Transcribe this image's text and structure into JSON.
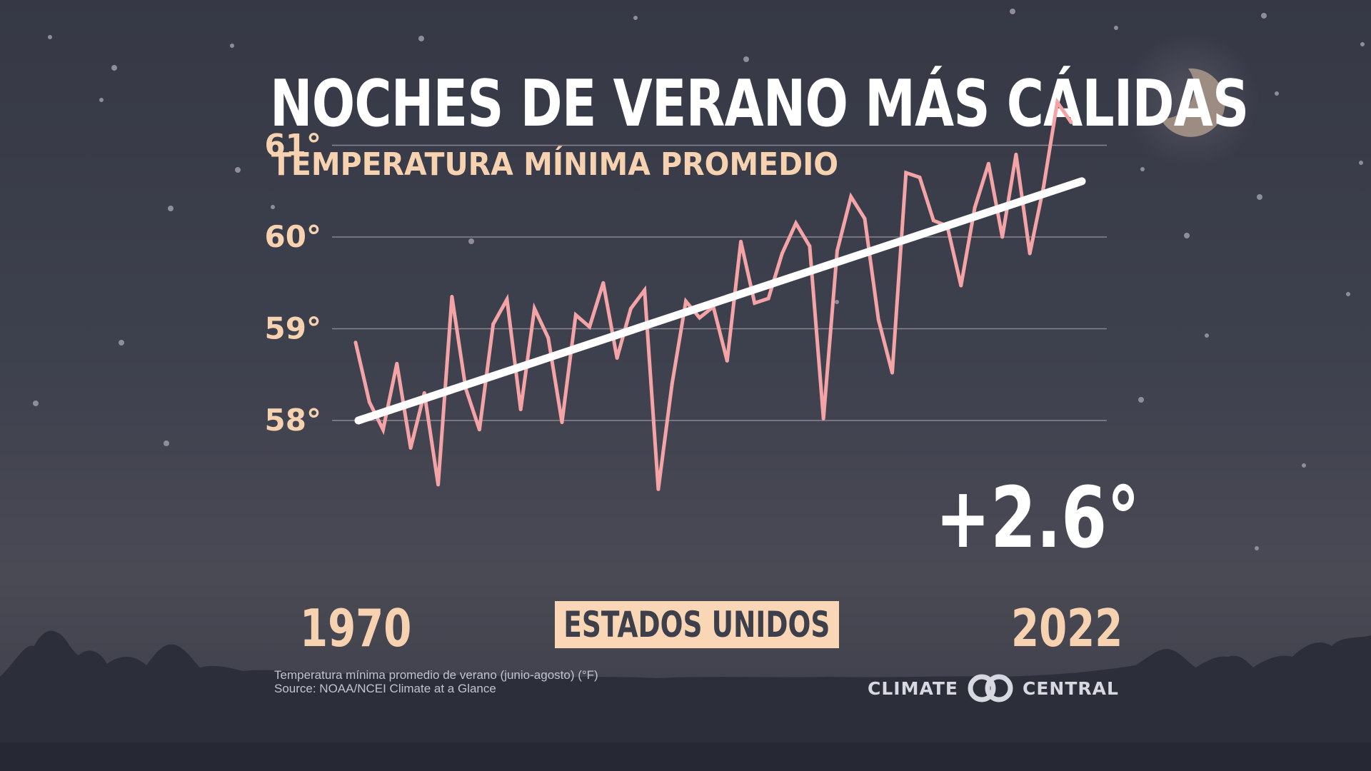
{
  "title": "NOCHES DE VERANO MÁS CÁLIDAS",
  "subtitle": "TEMPERATURA MÍNIMA PROMEDIO",
  "region": "ESTADOS UNIDOS",
  "change_label": "+2.6°",
  "footnote": {
    "line1": "Temperatura mínima promedio de verano (junio-agosto) (°F)",
    "line2": "Source: NOAA/NCEI Climate at a Glance"
  },
  "brand": {
    "left": "CLIMATE",
    "right": "CENTRAL"
  },
  "colors": {
    "series_line": "#f4a3a6",
    "trend_line": "#ffffff",
    "accent": "#f7d2b0",
    "background": "#3c3f4c"
  },
  "chart_data": {
    "type": "line",
    "title": "NOCHES DE VERANO MÁS CÁLIDAS",
    "subtitle": "TEMPERATURA MÍNIMA PROMEDIO",
    "xlabel": "",
    "ylabel": "",
    "x_range": [
      1970,
      2022
    ],
    "x_tick_labels": [
      "1970",
      "2022"
    ],
    "ylim": [
      57.2,
      61.5
    ],
    "y_ticks": [
      58,
      59,
      60,
      61
    ],
    "y_tick_labels": [
      "58°",
      "59°",
      "60°",
      "61°"
    ],
    "grid": true,
    "annotation": "+2.6°",
    "series": [
      {
        "x": [
          1970,
          1971,
          1972,
          1973,
          1974,
          1975,
          1976,
          1977,
          1978,
          1979,
          1980,
          1981,
          1982,
          1983,
          1984,
          1985,
          1986,
          1987,
          1988,
          1989,
          1990,
          1991,
          1992,
          1993,
          1994,
          1995,
          1996,
          1997,
          1998,
          1999,
          2000,
          2001,
          2002,
          2003,
          2004,
          2005,
          2006,
          2007,
          2008,
          2009,
          2010,
          2011,
          2012,
          2013,
          2014,
          2015,
          2016,
          2017,
          2018,
          2019,
          2020,
          2021,
          2022
        ],
        "values": [
          58.85,
          58.2,
          57.9,
          58.62,
          57.7,
          58.3,
          57.3,
          59.35,
          58.35,
          57.9,
          59.05,
          59.32,
          58.12,
          59.22,
          58.9,
          57.98,
          59.15,
          59.02,
          59.5,
          58.68,
          59.22,
          59.42,
          57.25,
          58.4,
          59.3,
          59.12,
          59.24,
          58.65,
          59.95,
          59.28,
          59.33,
          59.82,
          60.15,
          59.9,
          58.02,
          59.85,
          60.44,
          60.2,
          59.1,
          58.52,
          60.7,
          60.65,
          60.18,
          60.12,
          59.47,
          60.32,
          60.8,
          60.0,
          60.9,
          59.82,
          60.55,
          61.47,
          61.25
        ]
      },
      {
        "name": "trend",
        "x": [
          1970,
          2022
        ],
        "values": [
          58.0,
          60.6
        ]
      }
    ]
  }
}
